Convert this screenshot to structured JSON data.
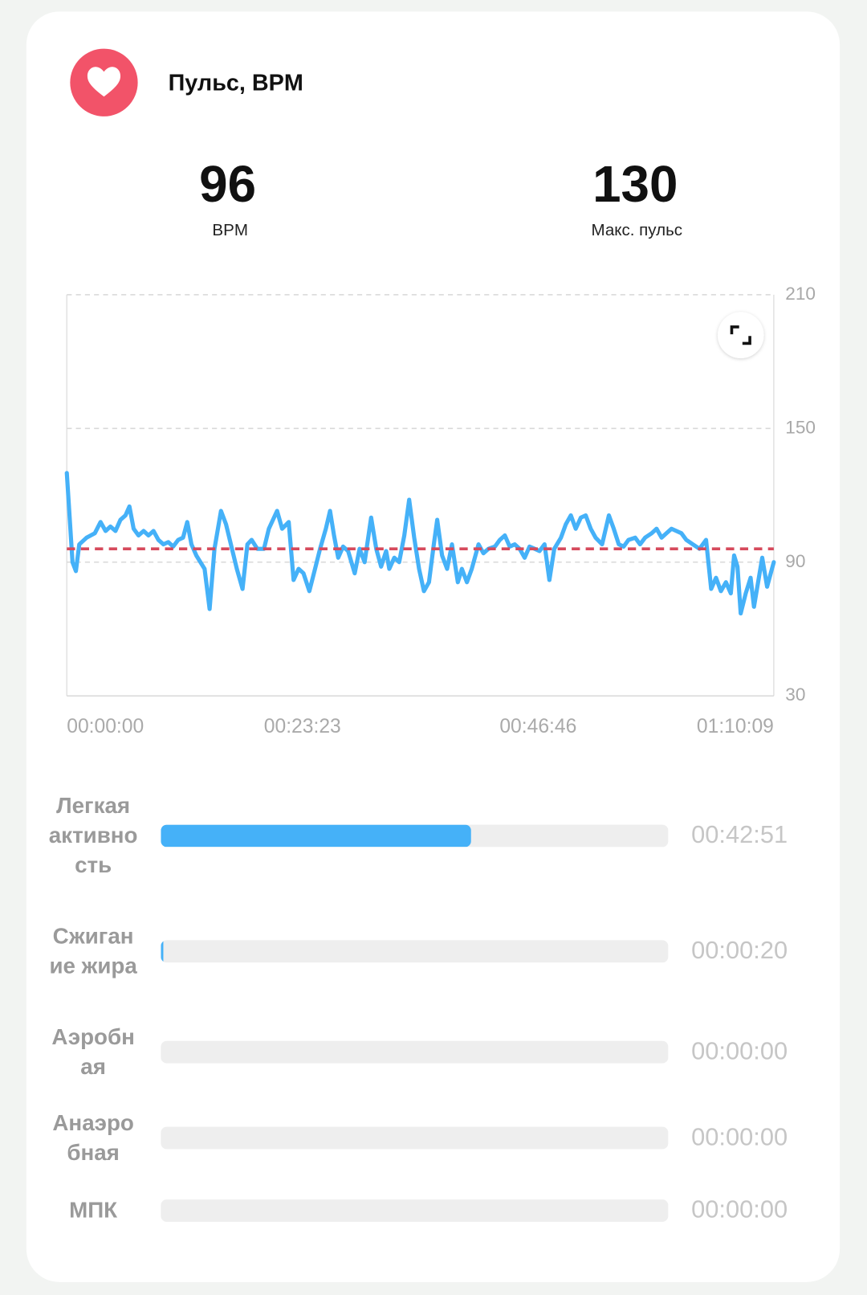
{
  "header": {
    "title": "Пульс, BPM"
  },
  "stats": [
    {
      "value": 96,
      "label": "BPM"
    },
    {
      "value": 130,
      "label": "Макс. пульс"
    }
  ],
  "chart_data": {
    "type": "line",
    "x": [
      0,
      34,
      54,
      74,
      118,
      167,
      201,
      231,
      260,
      290,
      319,
      349,
      373,
      398,
      427,
      457,
      486,
      516,
      545,
      575,
      604,
      633,
      663,
      692,
      717,
      742,
      771,
      820,
      850,
      879,
      918,
      948,
      977,
      1012,
      1046,
      1075,
      1100,
      1134,
      1174,
      1203,
      1252,
      1282,
      1321,
      1350,
      1380,
      1409,
      1444,
      1478,
      1508,
      1542,
      1567,
      1591,
      1616,
      1645,
      1675,
      1714,
      1743,
      1773,
      1812,
      1842,
      1871,
      1901,
      1920,
      1950,
      1979,
      2009,
      2038,
      2068,
      2097,
      2126,
      2156,
      2185,
      2205,
      2234,
      2264,
      2293,
      2328,
      2352,
      2382,
      2411,
      2451,
      2480,
      2510,
      2549,
      2578,
      2608,
      2637,
      2667,
      2696,
      2726,
      2755,
      2785,
      2814,
      2844,
      2873,
      2902,
      2942,
      2971,
      3001,
      3030,
      3060,
      3089,
      3119,
      3148,
      3187,
      3227,
      3256,
      3286,
      3315,
      3344,
      3384,
      3413,
      3443,
      3482,
      3511,
      3541,
      3570,
      3600,
      3629,
      3659,
      3688,
      3727,
      3767,
      3806,
      3836,
      3865,
      3894,
      3924,
      3953,
      3973,
      3993,
      4012,
      4042,
      4071,
      4091,
      4120,
      4140,
      4169,
      4209
    ],
    "values": [
      130,
      90,
      86,
      98,
      101,
      103,
      108,
      104,
      106,
      104,
      109,
      111,
      115,
      105,
      102,
      104,
      102,
      104,
      100,
      98,
      99,
      97,
      100,
      101,
      108,
      98,
      93,
      87,
      69,
      96,
      113,
      107,
      98,
      87,
      78,
      98,
      100,
      96,
      96,
      105,
      113,
      105,
      108,
      82,
      87,
      85,
      77,
      87,
      96,
      105,
      113,
      102,
      92,
      97,
      95,
      85,
      96,
      90,
      110,
      96,
      88,
      95,
      87,
      92,
      90,
      102,
      118,
      101,
      87,
      77,
      81,
      98,
      109,
      93,
      87,
      98,
      81,
      87,
      81,
      87,
      98,
      94,
      96,
      97,
      100,
      102,
      97,
      98,
      96,
      92,
      97,
      96,
      95,
      98,
      82,
      96,
      101,
      107,
      111,
      105,
      110,
      111,
      105,
      101,
      98,
      111,
      105,
      98,
      97,
      100,
      101,
      98,
      101,
      103,
      105,
      101,
      103,
      105,
      104,
      103,
      100,
      98,
      96,
      100,
      78,
      83,
      77,
      81,
      76,
      93,
      88,
      67,
      76,
      83,
      70,
      83,
      92,
      79,
      90
    ],
    "color": "#45b1f8",
    "average_color": "#d64a5c",
    "xlim": [
      0,
      4209
    ],
    "xticks": [
      {
        "value": 0,
        "label": "00:00:00"
      },
      {
        "value": 1403,
        "label": "00:23:23"
      },
      {
        "value": 2806,
        "label": "00:46:46"
      },
      {
        "value": 4209,
        "label": "01:10:09"
      }
    ],
    "ylim": [
      30,
      210
    ],
    "yticks": [
      30,
      90,
      150,
      210
    ],
    "grid": true
  },
  "zones": [
    {
      "name": "Легкая активность",
      "value": 2571,
      "value_label": "00:42:51"
    },
    {
      "name": "Сжигание жира",
      "value": 20,
      "value_label": "00:00:20"
    },
    {
      "name": "Аэробная",
      "value": 0,
      "value_label": "00:00:00"
    },
    {
      "name": "Анаэробная",
      "value": 0,
      "value_label": "00:00:00"
    },
    {
      "name": "МПК",
      "value": 0,
      "value_label": "00:00:00"
    }
  ],
  "zone_color": "#45b1f8"
}
